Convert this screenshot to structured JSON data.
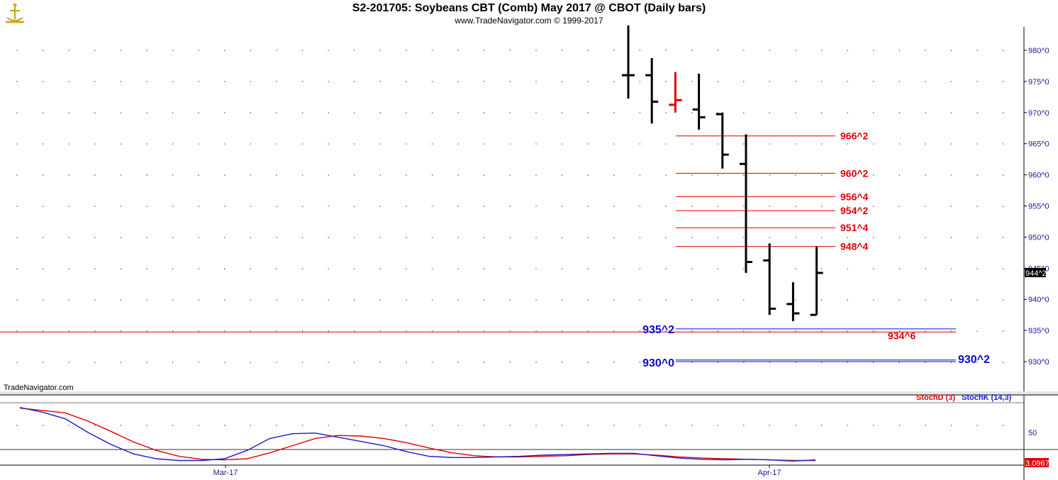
{
  "header": {
    "title": "S2-201705:  Soybeans CBT (Comb) May 2017 @ CBOT  (Daily bars)",
    "subtitle": "www.TradeNavigator.com © 1999-2017"
  },
  "footer": {
    "brand": "TradeNavigator.com"
  },
  "colors": {
    "bar": "#000000",
    "bar_highlight": "#e00000",
    "red_line": "#e00000",
    "blue_line": "#0a0ad0",
    "stoch_d": "#e00000",
    "stoch_k": "#1a1ad0",
    "axis_text": "#1a1a9a",
    "grid_dot": "#555555"
  },
  "chart_data": [
    {
      "type": "bar",
      "title": "S2-201705:  Soybeans CBT (Comb) May 2017 @ CBOT  (Daily bars)",
      "ylim": [
        925,
        984
      ],
      "yticks": [
        930,
        935,
        940,
        945,
        950,
        955,
        960,
        965,
        970,
        975,
        980
      ],
      "ytick_labels": [
        "930^0",
        "935^0",
        "940^0",
        "945^0",
        "950^0",
        "955^0",
        "960^0",
        "965^0",
        "970^0",
        "975^0",
        "980^0"
      ],
      "xtick_labels": [
        "Mar-17",
        "Apr-17"
      ],
      "last_price_label": "944^2",
      "last_price": 944.25,
      "ohlc": [
        {
          "open": 976.0,
          "high": 984.0,
          "low": 972.25,
          "close": 976.0
        },
        {
          "open": 976.0,
          "high": 978.75,
          "low": 968.25,
          "close": 971.75
        },
        {
          "open": 971.25,
          "high": 976.5,
          "low": 970.0,
          "close": 972.0,
          "highlight": true
        },
        {
          "open": 970.5,
          "high": 976.25,
          "low": 967.25,
          "close": 969.25
        },
        {
          "open": 969.75,
          "high": 970.0,
          "low": 961.0,
          "close": 963.25
        },
        {
          "open": 961.75,
          "high": 966.5,
          "low": 944.25,
          "close": 946.0
        },
        {
          "open": 946.25,
          "high": 949.0,
          "low": 937.5,
          "close": 938.5
        },
        {
          "open": 939.25,
          "high": 942.75,
          "low": 936.5,
          "close": 937.75
        },
        {
          "open": 937.5,
          "high": 948.5,
          "low": 937.5,
          "close": 944.25
        }
      ],
      "horizontal_lines": [
        {
          "value": 966.25,
          "label": "966^2",
          "color": "red"
        },
        {
          "value": 960.25,
          "label": "960^2",
          "color": "red"
        },
        {
          "value": 956.5,
          "label": "956^4",
          "color": "red"
        },
        {
          "value": 954.25,
          "label": "954^2",
          "color": "red"
        },
        {
          "value": 951.5,
          "label": "951^4",
          "color": "red"
        },
        {
          "value": 948.5,
          "label": "948^4",
          "color": "red"
        },
        {
          "value": 934.75,
          "label": "934^6",
          "color": "red",
          "full_width": true
        },
        {
          "value": 935.25,
          "label": "935^2",
          "color": "blue",
          "label_side": "left"
        },
        {
          "value": 930.0,
          "label": "930^0",
          "color": "blue",
          "label_side": "left"
        },
        {
          "value": 930.25,
          "label": "930^2",
          "color": "blue",
          "label_side": "right"
        }
      ]
    },
    {
      "type": "line",
      "legend": [
        "StochD (3)",
        "StochK (14,3)"
      ],
      "ylim": [
        0,
        100
      ],
      "yticks": [
        50
      ],
      "ytick_labels": [
        "50"
      ],
      "last_value_label": "3.0967",
      "series": [
        {
          "name": "StochD (3)",
          "values": [
            91,
            87,
            83,
            69,
            52,
            34,
            20,
            10,
            5,
            4,
            6,
            16,
            28,
            40,
            45,
            44,
            40,
            33,
            24,
            16,
            11,
            9,
            9,
            10,
            11,
            13,
            14,
            14,
            12,
            9,
            7,
            6,
            5,
            4,
            3,
            3
          ]
        },
        {
          "name": "StochK (14,3)",
          "values": [
            92,
            84,
            73,
            50,
            30,
            14,
            6,
            3,
            3,
            6,
            20,
            40,
            48,
            49,
            42,
            35,
            28,
            18,
            10,
            8,
            8,
            9,
            10,
            12,
            13,
            14,
            15,
            15,
            11,
            7,
            5,
            4,
            5,
            4,
            2,
            4
          ]
        }
      ]
    }
  ]
}
